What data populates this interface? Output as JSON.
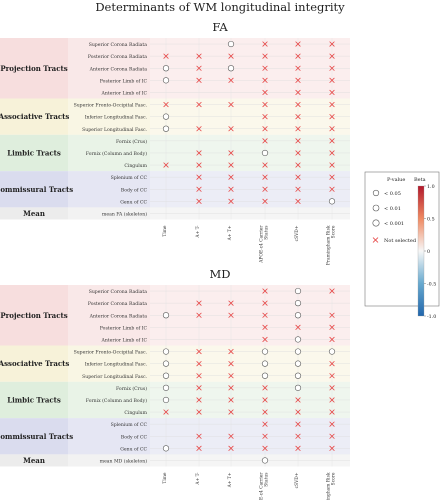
{
  "title": "Determinants of WM longitudinal integrity",
  "columns": [
    "Time",
    "A+ T-",
    "A+ T+",
    "APOE-ε4 Carrier Status",
    "cSVD+",
    "Framingham Risk Score"
  ],
  "legend": {
    "pvalue_title": "P-value",
    "beta_title": "Beta",
    "sizes": [
      "< 0.05",
      "< 0.01",
      "< 0.001"
    ],
    "not_selected": "Not selected",
    "ticks": [
      "1.0",
      "0.5",
      "0",
      "-0.5",
      "-1.0"
    ],
    "colors": {
      "pos": "#b2182b",
      "mid": "#f7f7f7",
      "neg": "#2166ac",
      "cross": "#e64545"
    }
  },
  "panels": [
    {
      "title": "FA",
      "groups": [
        {
          "name": "Projection Tracts",
          "color": "#f7dede",
          "rows": [
            "Superior Corona Radiata",
            "Posterior Corona Radiata",
            "Anterior Corona Radiata",
            "Posterior Limb of IC",
            "Anterior Limb of IC"
          ]
        },
        {
          "name": "Associative Tracts",
          "color": "#f7f2d9",
          "rows": [
            "Superior Fronto-Occipital Fasc.",
            "Inferior Longitudinal Fasc.",
            "Superior Longitudinal Fasc."
          ]
        },
        {
          "name": "Limbic Tracts",
          "color": "#dfeedd",
          "rows": [
            "Fornix (Crus)",
            "Fornix (Column and Body)",
            "Cingulum"
          ]
        },
        {
          "name": "Commissural Tracts",
          "color": "#dadcee",
          "rows": [
            "Splenium of CC",
            "Body of CC",
            "Genu of CC"
          ]
        },
        {
          "name": "Mean",
          "color": "#ececec",
          "rows": [
            "mean FA (skeleton)"
          ]
        }
      ],
      "cells": [
        [
          "",
          "",
          "o",
          "x",
          "x",
          "x"
        ],
        [
          "x",
          "x",
          "x",
          "x",
          "x",
          "x"
        ],
        [
          "o",
          "x",
          "o",
          "x",
          "x",
          "x"
        ],
        [
          "o",
          "x",
          "x",
          "x",
          "x",
          "x"
        ],
        [
          "",
          "",
          "",
          "x",
          "x",
          "x"
        ],
        [
          "x",
          "x",
          "x",
          "x",
          "x",
          "x"
        ],
        [
          "o",
          "",
          "",
          "x",
          "x",
          "x"
        ],
        [
          "o",
          "x",
          "x",
          "x",
          "x",
          "x"
        ],
        [
          "",
          "",
          "",
          "x",
          "x",
          "x"
        ],
        [
          "",
          "x",
          "x",
          "o",
          "x",
          "x"
        ],
        [
          "x",
          "x",
          "x",
          "x",
          "x",
          "x"
        ],
        [
          "",
          "x",
          "x",
          "x",
          "x",
          "x"
        ],
        [
          "",
          "x",
          "x",
          "x",
          "x",
          "x"
        ],
        [
          "",
          "x",
          "x",
          "x",
          "x",
          "o"
        ],
        [
          "",
          "",
          "",
          "",
          "",
          ""
        ]
      ]
    },
    {
      "title": "MD",
      "groups": [
        {
          "name": "Projection Tracts",
          "color": "#f7dede",
          "rows": [
            "Superior Corona Radiata",
            "Posterior Corona Radiata",
            "Anterior Corona Radiata",
            "Posterior Limb of IC",
            "Anterior Limb of IC"
          ]
        },
        {
          "name": "Associative Tracts",
          "color": "#f7f2d9",
          "rows": [
            "Superior Fronto-Occipital Fasc.",
            "Inferior Longitudinal Fasc.",
            "Superior Longitudinal Fasc."
          ]
        },
        {
          "name": "Limbic Tracts",
          "color": "#dfeedd",
          "rows": [
            "Fornix (Crus)",
            "Fornix (Column and Body)",
            "Cingulum"
          ]
        },
        {
          "name": "Commissural Tracts",
          "color": "#dadcee",
          "rows": [
            "Splenium of CC",
            "Body of CC",
            "Genu of CC"
          ]
        },
        {
          "name": "Mean",
          "color": "#ececec",
          "rows": [
            "mean MD (skeleton)"
          ]
        }
      ],
      "cells": [
        [
          "",
          "",
          "",
          "x",
          "o",
          "x"
        ],
        [
          "",
          "x",
          "x",
          "x",
          "o",
          ""
        ],
        [
          "o",
          "x",
          "x",
          "x",
          "o",
          "x"
        ],
        [
          "",
          "",
          "",
          "x",
          "x",
          "x"
        ],
        [
          "",
          "",
          "",
          "x",
          "o",
          "x"
        ],
        [
          "o",
          "x",
          "x",
          "o",
          "o",
          "o"
        ],
        [
          "o",
          "x",
          "x",
          "o",
          "o",
          "x"
        ],
        [
          "o",
          "x",
          "x",
          "o",
          "o",
          "x"
        ],
        [
          "o",
          "x",
          "x",
          "x",
          "o",
          "x"
        ],
        [
          "o",
          "x",
          "x",
          "x",
          "x",
          "x"
        ],
        [
          "x",
          "x",
          "x",
          "x",
          "x",
          "x"
        ],
        [
          "",
          "",
          "",
          "x",
          "x",
          "x"
        ],
        [
          "",
          "x",
          "x",
          "x",
          "x",
          "x"
        ],
        [
          "o",
          "x",
          "x",
          "x",
          "x",
          "x"
        ],
        [
          "",
          "",
          "",
          "o",
          "",
          ""
        ]
      ]
    }
  ]
}
